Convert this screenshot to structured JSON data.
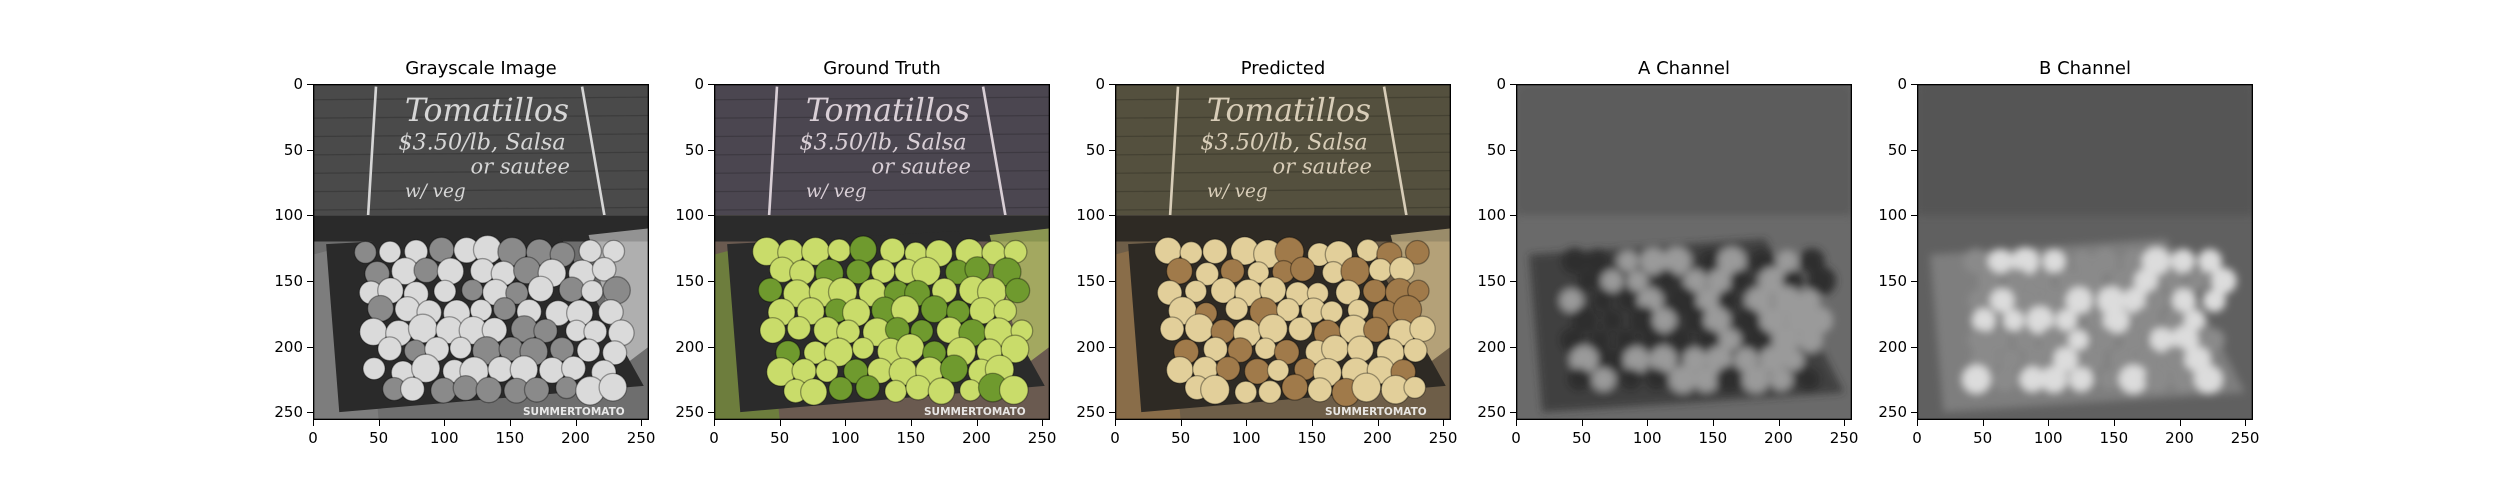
{
  "figure": {
    "panels": [
      {
        "title": "Grayscale Image",
        "x_ticks": [
          "0",
          "50",
          "100",
          "150",
          "200",
          "250"
        ],
        "y_ticks": [
          "0",
          "50",
          "100",
          "150",
          "200",
          "250"
        ],
        "watermark": "SUMMERTOMATO",
        "sign_lines": [
          "Tomatillos",
          "$3.50/lb, Salsa",
          "or sautee",
          "w/ veg"
        ],
        "palette": {
          "board": "#4a4a4a",
          "chalk": "#d6d6d6",
          "fruit_light": "#dadada",
          "fruit_dark": "#8a8a8a",
          "crate": "#2a2a2a",
          "floor": "#6e6e6e"
        }
      },
      {
        "title": "Ground Truth",
        "x_ticks": [
          "0",
          "50",
          "100",
          "150",
          "200",
          "250"
        ],
        "y_ticks": [
          "0",
          "50",
          "100",
          "150",
          "200",
          "250"
        ],
        "watermark": "SUMMERTOMATO",
        "sign_lines": [
          "Tomatillos",
          "$3.50/lb, Salsa",
          "or sautee",
          "w/ veg"
        ],
        "palette": {
          "board": "#4b4650",
          "chalk": "#d9cfd6",
          "fruit_light": "#c9dc6a",
          "fruit_dark": "#6f9a2e",
          "crate": "#2b2b2b",
          "floor": "#6a5a50"
        }
      },
      {
        "title": "Predicted",
        "x_ticks": [
          "0",
          "50",
          "100",
          "150",
          "200",
          "250"
        ],
        "y_ticks": [
          "0",
          "50",
          "100",
          "150",
          "200",
          "250"
        ],
        "watermark": "SUMMERTOMATO",
        "sign_lines": [
          "Tomatillos",
          "$3.50/lb, Salsa",
          "or sautee",
          "w/ veg"
        ],
        "palette": {
          "board": "#54503e",
          "chalk": "#d8cdb8",
          "fruit_light": "#e2cf9a",
          "fruit_dark": "#a07a4a",
          "crate": "#2e2a24",
          "floor": "#6e5e48"
        }
      },
      {
        "title": "A Channel",
        "x_ticks": [
          "0",
          "50",
          "100",
          "150",
          "200",
          "250"
        ],
        "y_ticks": [
          "0",
          "50",
          "100",
          "150",
          "200",
          "250"
        ],
        "palette": {
          "bg": "#6a6a6a",
          "top": "#5c5c5c",
          "fruit_light": "#9a9a9a",
          "fruit_dark": "#2e2e2e"
        }
      },
      {
        "title": "B Channel",
        "x_ticks": [
          "0",
          "50",
          "100",
          "150",
          "200",
          "250"
        ],
        "y_ticks": [
          "0",
          "50",
          "100",
          "150",
          "200",
          "250"
        ],
        "palette": {
          "bg": "#606060",
          "top": "#555555",
          "fruit_light": "#dcdcdc",
          "fruit_dark": "#8a8a8a"
        }
      }
    ]
  }
}
